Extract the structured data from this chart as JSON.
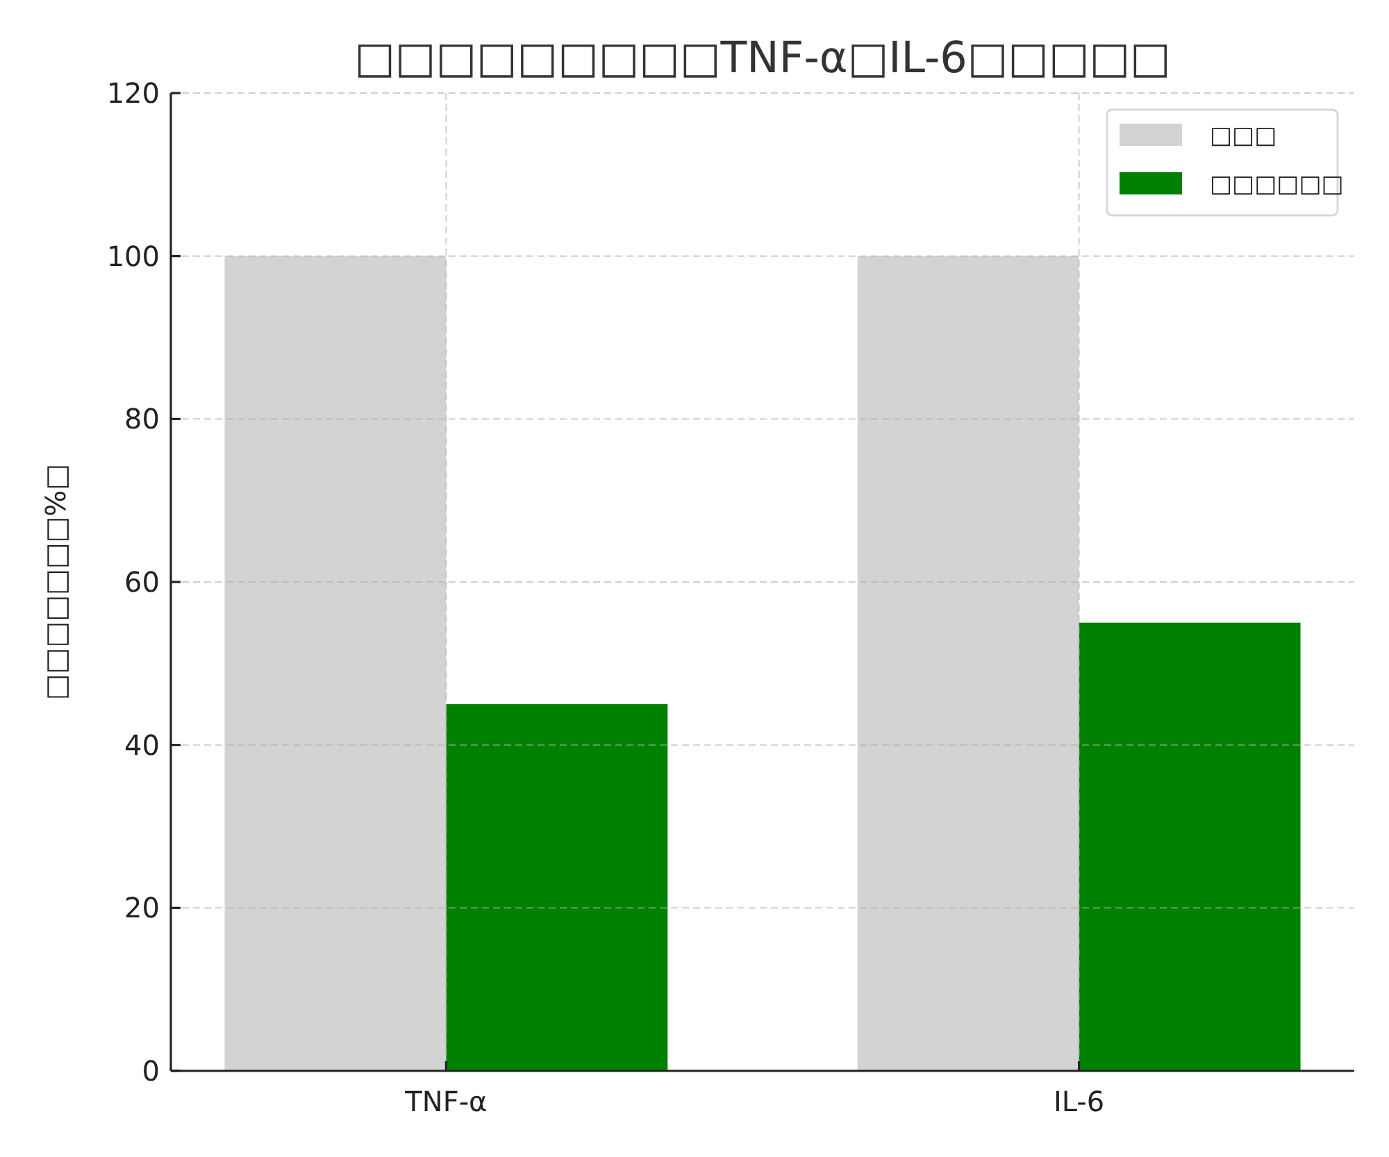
{
  "chart_data": {
    "type": "bar",
    "title": "□□□□□□□□□TNF-α□IL-6□□□□□",
    "ylabel": "□□□□□□□%□",
    "categories": [
      "TNF-α",
      "IL-6"
    ],
    "series": [
      {
        "name": "□□□",
        "color": "#d3d3d3",
        "values": [
          100,
          100
        ]
      },
      {
        "name": "□□□□□□",
        "color": "#008000",
        "values": [
          45,
          55
        ]
      }
    ],
    "ylim": [
      0,
      120
    ],
    "yticks": [
      0,
      20,
      40,
      60,
      80,
      100,
      120
    ],
    "grid": true,
    "legend": "top right"
  }
}
